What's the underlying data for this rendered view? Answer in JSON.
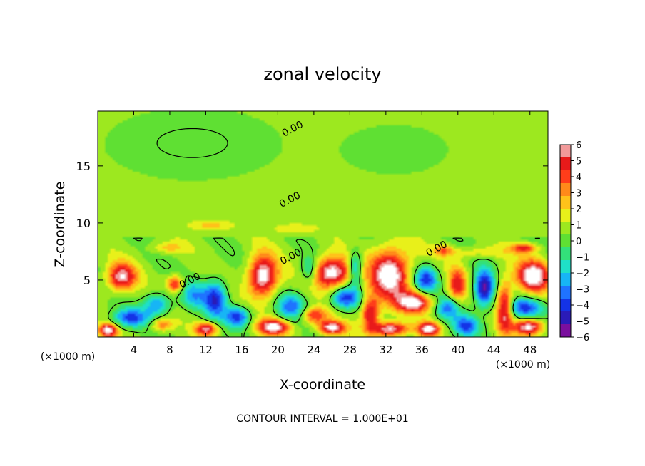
{
  "chart_data": {
    "type": "heatmap",
    "title": "zonal velocity",
    "xlabel": "X-coordinate",
    "ylabel": "Z-coordinate",
    "x_unit_left": "(×1000 m)",
    "x_unit_right": "(×1000 m)",
    "footer": "CONTOUR INTERVAL = 1.000E+01",
    "xlim": [
      0,
      50
    ],
    "ylim": [
      0,
      19.8
    ],
    "xticks": [
      4,
      8,
      12,
      16,
      20,
      24,
      28,
      32,
      36,
      40,
      44,
      48
    ],
    "xtick_labels": [
      "4",
      "8",
      "12",
      "16",
      "20",
      "24",
      "28",
      "32",
      "36",
      "40",
      "44",
      "48"
    ],
    "yticks": [
      5,
      10,
      15
    ],
    "ytick_labels": [
      "5",
      "10",
      "15"
    ],
    "colorbar": {
      "min": -6,
      "max": 6,
      "ticks": [
        6,
        5,
        4,
        3,
        2,
        1,
        0,
        -1,
        -2,
        -3,
        -4,
        -5,
        -6
      ],
      "tick_labels": [
        "6",
        "5",
        "4",
        "3",
        "2",
        "1",
        "0",
        "−1",
        "−2",
        "−3",
        "−4",
        "−5",
        "−6"
      ],
      "colors": [
        "#7a0f9e",
        "#2a1bb8",
        "#1433e6",
        "#1f73ff",
        "#17b5f5",
        "#1fe0c8",
        "#33e07a",
        "#5fe033",
        "#9de81f",
        "#e8f01a",
        "#ffc21a",
        "#ff8a1a",
        "#ff3d1a",
        "#e81a1a",
        "#f29a9a"
      ]
    },
    "contour_labels": [
      {
        "text": "0.00",
        "x": 21.8,
        "y": 18.0
      },
      {
        "text": "0.00",
        "x": 21.5,
        "y": 11.8
      },
      {
        "text": "0.00",
        "x": 21.6,
        "y": 6.8
      },
      {
        "text": "0.00",
        "x": 10.4,
        "y": 4.7
      },
      {
        "text": "0.00",
        "x": 37.8,
        "y": 7.5
      }
    ],
    "anomalies": [
      {
        "x": 10.5,
        "z": 17.0,
        "v": -0.7,
        "sx": 8,
        "sz": 2.6
      },
      {
        "x": 33,
        "z": 16.5,
        "v": -0.4,
        "sx": 6,
        "sz": 2.2
      },
      {
        "x": 2.5,
        "z": 5.2,
        "v": 5.5,
        "sx": 1.6,
        "sz": 1.2
      },
      {
        "x": 1,
        "z": 0.5,
        "v": 6,
        "sx": 1,
        "sz": 0.6
      },
      {
        "x": 3.5,
        "z": 1.6,
        "v": -4.2,
        "sx": 2.0,
        "sz": 0.8
      },
      {
        "x": 6.5,
        "z": 2.8,
        "v": -3.5,
        "sx": 1.5,
        "sz": 1.0
      },
      {
        "x": 8.5,
        "z": 4.6,
        "v": 4.5,
        "sx": 0.9,
        "sz": 0.7
      },
      {
        "x": 7,
        "z": 1.0,
        "v": 3,
        "sx": 1.2,
        "sz": 0.6
      },
      {
        "x": 10.5,
        "z": 3.6,
        "v": -2.8,
        "sx": 1.4,
        "sz": 1.2
      },
      {
        "x": 13,
        "z": 3.3,
        "v": -4.8,
        "sx": 1.3,
        "sz": 1.6
      },
      {
        "x": 12,
        "z": 0.6,
        "v": 5,
        "sx": 1.2,
        "sz": 0.6
      },
      {
        "x": 15.5,
        "z": 1.7,
        "v": -4.5,
        "sx": 1.4,
        "sz": 0.9
      },
      {
        "x": 18.3,
        "z": 5.3,
        "v": 6.5,
        "sx": 1.6,
        "sz": 1.8
      },
      {
        "x": 19.5,
        "z": 0.8,
        "v": 6,
        "sx": 1.8,
        "sz": 0.7
      },
      {
        "x": 21.5,
        "z": 2.6,
        "v": -3.5,
        "sx": 1.6,
        "sz": 1.2
      },
      {
        "x": 24,
        "z": 1.8,
        "v": 4,
        "sx": 1.5,
        "sz": 0.7
      },
      {
        "x": 26,
        "z": 5.6,
        "v": 6.5,
        "sx": 2.2,
        "sz": 1.4
      },
      {
        "x": 23.5,
        "z": 5.8,
        "v": -3,
        "sx": 1.0,
        "sz": 1.2
      },
      {
        "x": 27.5,
        "z": 3.4,
        "v": -4.5,
        "sx": 1.6,
        "sz": 1.0
      },
      {
        "x": 26,
        "z": 0.7,
        "v": 6,
        "sx": 1.5,
        "sz": 0.6
      },
      {
        "x": 28.6,
        "z": 6.0,
        "v": -4,
        "sx": 0.8,
        "sz": 1.5
      },
      {
        "x": 32.5,
        "z": 5.5,
        "v": 6.5,
        "sx": 2.2,
        "sz": 2.2
      },
      {
        "x": 35.2,
        "z": 3.0,
        "v": 6,
        "sx": 2.0,
        "sz": 0.9
      },
      {
        "x": 30.3,
        "z": 2.0,
        "v": 5,
        "sx": 1.0,
        "sz": 1.5
      },
      {
        "x": 32.5,
        "z": 0.6,
        "v": 6,
        "sx": 2.0,
        "sz": 0.6
      },
      {
        "x": 36.5,
        "z": 5.0,
        "v": -4.5,
        "sx": 1.3,
        "sz": 1.2
      },
      {
        "x": 36.8,
        "z": 0.6,
        "v": 6,
        "sx": 1.2,
        "sz": 0.6
      },
      {
        "x": 40,
        "z": 4.5,
        "v": 4,
        "sx": 1.0,
        "sz": 1.6
      },
      {
        "x": 39,
        "z": 2.5,
        "v": -3.5,
        "sx": 1.4,
        "sz": 1.0
      },
      {
        "x": 41,
        "z": 0.9,
        "v": -4,
        "sx": 1.4,
        "sz": 0.9
      },
      {
        "x": 43,
        "z": 4.2,
        "v": -6,
        "sx": 1.1,
        "sz": 1.6
      },
      {
        "x": 45.3,
        "z": 2.5,
        "v": 5.5,
        "sx": 0.9,
        "sz": 2.2
      },
      {
        "x": 48.5,
        "z": 5.3,
        "v": 6.5,
        "sx": 1.8,
        "sz": 1.4
      },
      {
        "x": 48,
        "z": 0.8,
        "v": 6,
        "sx": 1.6,
        "sz": 0.7
      },
      {
        "x": 47.5,
        "z": 2.5,
        "v": -4,
        "sx": 2.2,
        "sz": 0.9
      },
      {
        "x": 12.5,
        "z": 9.8,
        "v": 1.7,
        "sx": 2.8,
        "sz": 0.5
      },
      {
        "x": 22,
        "z": 9.5,
        "v": 1.3,
        "sx": 3,
        "sz": 0.5
      },
      {
        "x": 7.5,
        "z": 7.8,
        "v": 1.8,
        "sx": 2,
        "sz": 0.5
      },
      {
        "x": 42,
        "z": 7.4,
        "v": 1.5,
        "sx": 4,
        "sz": 0.5
      },
      {
        "x": 47.5,
        "z": 7.8,
        "v": 4,
        "sx": 1.4,
        "sz": 0.4
      },
      {
        "x": 38.5,
        "z": 7.6,
        "v": 2.5,
        "sx": 1.0,
        "sz": 0.5
      }
    ]
  }
}
